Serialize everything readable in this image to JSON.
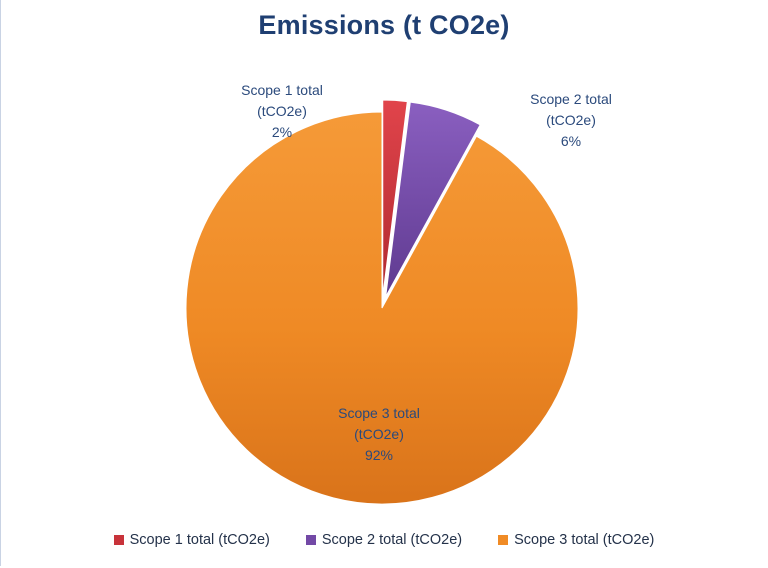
{
  "chart_data": {
    "type": "pie",
    "title": "Emissions (t CO2e)",
    "categories": [
      "Scope 1 total (tCO2e)",
      "Scope 2 total (tCO2e)",
      "Scope 3 total (tCO2e)"
    ],
    "values": [
      2,
      6,
      92
    ],
    "unit": "%",
    "colors": [
      "#c8333a",
      "#7349a6",
      "#f08b25"
    ],
    "exploded": [
      true,
      true,
      false
    ],
    "legend_position": "bottom",
    "data_labels": [
      {
        "name_line1": "Scope 1 total",
        "name_line2": "(tCO2e)",
        "pct": "2%"
      },
      {
        "name_line1": "Scope 2 total",
        "name_line2": "(tCO2e)",
        "pct": "6%"
      },
      {
        "name_line1": "Scope 3 total",
        "name_line2": "(tCO2e)",
        "pct": "92%"
      }
    ]
  }
}
